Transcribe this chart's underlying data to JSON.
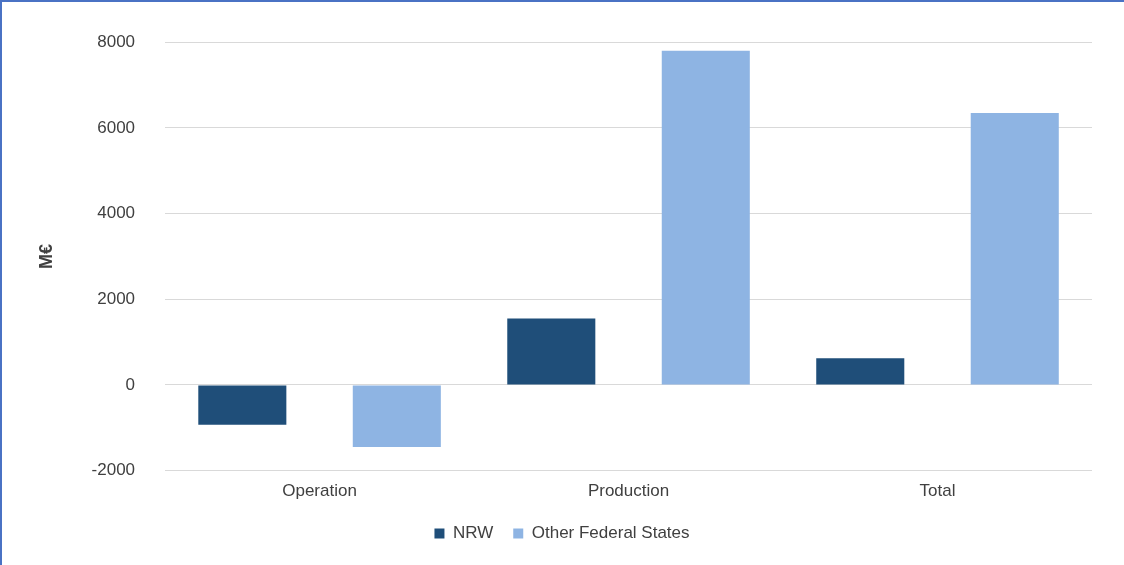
{
  "chart_data": {
    "type": "bar",
    "ylabel": "M€",
    "categories": [
      "Operation",
      "Production",
      "Total"
    ],
    "series": [
      {
        "name": "NRW",
        "color": "#1f4e79",
        "values": [
          -930,
          1550,
          620
        ]
      },
      {
        "name": "Other Federal States",
        "color": "#8eb4e3",
        "values": [
          -1450,
          7800,
          6350
        ]
      }
    ],
    "ylim": [
      -2000,
      8000
    ],
    "yticks": [
      -2000,
      0,
      2000,
      4000,
      6000,
      8000
    ],
    "grid": "y",
    "legend": "bottom"
  }
}
